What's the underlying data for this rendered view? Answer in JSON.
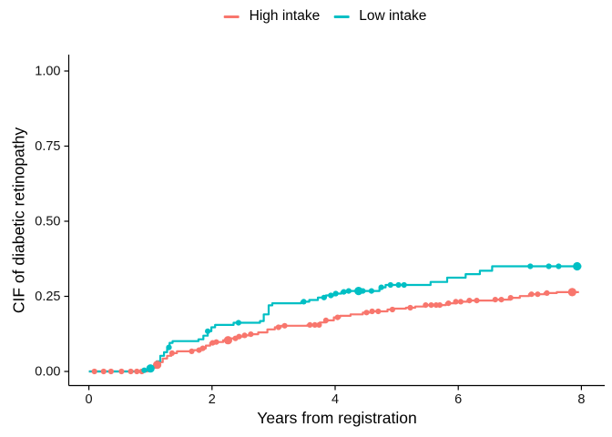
{
  "chart_data": {
    "type": "line",
    "variant": "cumulative-incidence-step-curves-with-censor-marks",
    "title": "",
    "xlabel": "Years from registration",
    "ylabel": "CIF of diabetic retinopathy",
    "xlim": [
      0,
      8.4
    ],
    "ylim": [
      0,
      1.05
    ],
    "x_ticks": [
      0,
      2,
      4,
      6,
      8
    ],
    "y_ticks": [
      "0.00",
      "0.25",
      "0.50",
      "0.75",
      "1.00"
    ],
    "grid": false,
    "legend_position": "top-center",
    "axis_color": "#000000",
    "tick_label_color": "#111111",
    "series": [
      {
        "name": "High intake",
        "color": "#F8766D",
        "steps": [
          [
            0,
            0
          ],
          [
            0.95,
            0.004
          ],
          [
            1.02,
            0.012
          ],
          [
            1.08,
            0.022
          ],
          [
            1.14,
            0.031
          ],
          [
            1.2,
            0.043
          ],
          [
            1.27,
            0.052
          ],
          [
            1.34,
            0.061
          ],
          [
            1.43,
            0.067
          ],
          [
            1.7,
            0.071
          ],
          [
            1.8,
            0.077
          ],
          [
            1.9,
            0.086
          ],
          [
            1.97,
            0.095
          ],
          [
            2.03,
            0.098
          ],
          [
            2.18,
            0.104
          ],
          [
            2.28,
            0.11
          ],
          [
            2.4,
            0.116
          ],
          [
            2.5,
            0.12
          ],
          [
            2.62,
            0.124
          ],
          [
            2.75,
            0.13
          ],
          [
            2.9,
            0.14
          ],
          [
            3.02,
            0.147
          ],
          [
            3.12,
            0.152
          ],
          [
            3.55,
            0.155
          ],
          [
            3.75,
            0.163
          ],
          [
            3.85,
            0.17
          ],
          [
            3.98,
            0.18
          ],
          [
            4.08,
            0.185
          ],
          [
            4.25,
            0.19
          ],
          [
            4.45,
            0.196
          ],
          [
            4.6,
            0.2
          ],
          [
            4.85,
            0.206
          ],
          [
            4.95,
            0.209
          ],
          [
            5.15,
            0.212
          ],
          [
            5.3,
            0.216
          ],
          [
            5.45,
            0.221
          ],
          [
            5.8,
            0.227
          ],
          [
            5.95,
            0.232
          ],
          [
            6.15,
            0.236
          ],
          [
            6.6,
            0.239
          ],
          [
            6.85,
            0.245
          ],
          [
            7.0,
            0.251
          ],
          [
            7.15,
            0.257
          ],
          [
            7.4,
            0.261
          ],
          [
            7.6,
            0.264
          ],
          [
            7.96,
            0.264
          ]
        ],
        "censor_times": [
          0.09,
          0.24,
          0.36,
          0.53,
          0.68,
          0.78,
          0.86,
          1.11,
          1.35,
          1.67,
          1.79,
          1.85,
          2.01,
          2.07,
          2.26,
          2.38,
          2.44,
          2.53,
          2.63,
          3.08,
          3.18,
          3.59,
          3.67,
          3.74,
          3.85,
          4.04,
          4.51,
          4.6,
          4.7,
          4.93,
          5.22,
          5.47,
          5.56,
          5.64,
          5.7,
          5.84,
          5.96,
          6.04,
          6.18,
          6.3,
          6.6,
          6.7,
          6.85,
          7.19,
          7.29,
          7.44,
          7.85
        ],
        "censor_times_large": [
          1.11,
          2.26,
          7.85
        ]
      },
      {
        "name": "Low intake",
        "color": "#00BFC4",
        "steps": [
          [
            0,
            0
          ],
          [
            0.88,
            0.004
          ],
          [
            0.98,
            0.01
          ],
          [
            1.04,
            0.018
          ],
          [
            1.1,
            0.034
          ],
          [
            1.16,
            0.052
          ],
          [
            1.22,
            0.064
          ],
          [
            1.27,
            0.08
          ],
          [
            1.31,
            0.095
          ],
          [
            1.36,
            0.101
          ],
          [
            1.78,
            0.107
          ],
          [
            1.86,
            0.119
          ],
          [
            1.93,
            0.134
          ],
          [
            1.99,
            0.147
          ],
          [
            2.05,
            0.155
          ],
          [
            2.35,
            0.162
          ],
          [
            2.78,
            0.168
          ],
          [
            2.84,
            0.19
          ],
          [
            2.92,
            0.22
          ],
          [
            2.98,
            0.227
          ],
          [
            3.45,
            0.232
          ],
          [
            3.58,
            0.238
          ],
          [
            3.72,
            0.246
          ],
          [
            3.85,
            0.253
          ],
          [
            3.98,
            0.259
          ],
          [
            4.1,
            0.265
          ],
          [
            4.22,
            0.268
          ],
          [
            4.72,
            0.28
          ],
          [
            4.82,
            0.288
          ],
          [
            5.55,
            0.298
          ],
          [
            5.82,
            0.312
          ],
          [
            6.12,
            0.324
          ],
          [
            6.35,
            0.335
          ],
          [
            6.55,
            0.35
          ],
          [
            8.0,
            0.35
          ]
        ],
        "censor_times": [
          0.9,
          1.0,
          1.3,
          1.93,
          2.43,
          3.49,
          3.82,
          3.93,
          4.01,
          4.14,
          4.22,
          4.38,
          4.45,
          4.59,
          4.75,
          4.9,
          5.03,
          5.12,
          7.17,
          7.47,
          7.63,
          7.93
        ],
        "censor_times_large": [
          1.0,
          4.38,
          7.93
        ]
      }
    ]
  }
}
